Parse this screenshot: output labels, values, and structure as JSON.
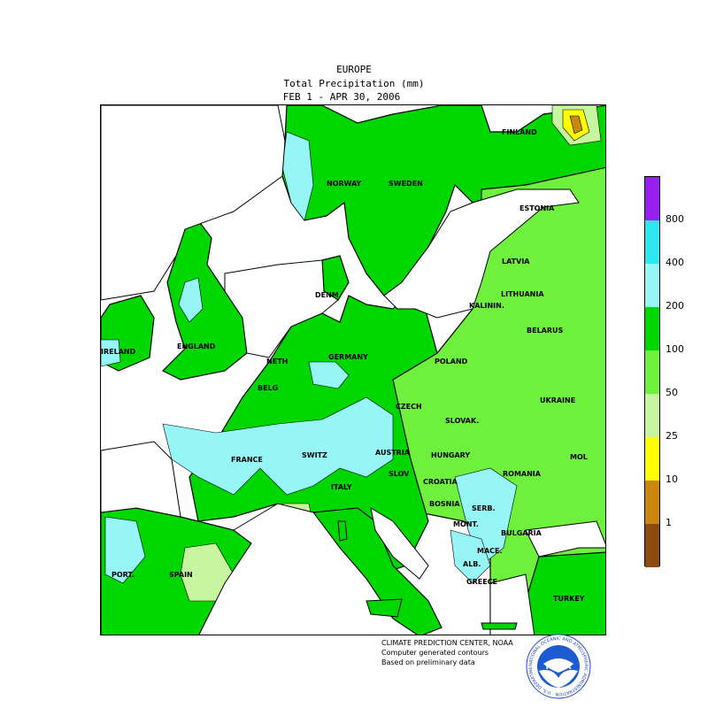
{
  "header": {
    "region": "EUROPE",
    "variable": "Total Precipitation (mm)",
    "period": "FEB  1 - APR 30, 2006"
  },
  "countries": [
    {
      "id": "finland",
      "label": "FINLAND"
    },
    {
      "id": "norway",
      "label": "NORWAY"
    },
    {
      "id": "sweden",
      "label": "SWEDEN"
    },
    {
      "id": "estonia",
      "label": "ESTONIA"
    },
    {
      "id": "latvia",
      "label": "LATVIA"
    },
    {
      "id": "lithuania",
      "label": "LITHUANIA"
    },
    {
      "id": "kalinin",
      "label": "KALININ."
    },
    {
      "id": "belarus",
      "label": "BELARUS"
    },
    {
      "id": "denmark",
      "label": "DENM"
    },
    {
      "id": "ireland",
      "label": "IRELAND"
    },
    {
      "id": "england",
      "label": "ENGLAND"
    },
    {
      "id": "neth",
      "label": "NETH"
    },
    {
      "id": "belg",
      "label": "BELG"
    },
    {
      "id": "germany",
      "label": "GERMANY"
    },
    {
      "id": "poland",
      "label": "POLAND"
    },
    {
      "id": "ukraine",
      "label": "UKRAINE"
    },
    {
      "id": "czech",
      "label": "CZECH"
    },
    {
      "id": "slovak",
      "label": "SLOVAK."
    },
    {
      "id": "france",
      "label": "FRANCE"
    },
    {
      "id": "switz",
      "label": "SWITZ"
    },
    {
      "id": "austria",
      "label": "AUSTRIA"
    },
    {
      "id": "hungary",
      "label": "HUNGARY"
    },
    {
      "id": "romania",
      "label": "ROMANIA"
    },
    {
      "id": "mol",
      "label": "MOL"
    },
    {
      "id": "slov",
      "label": "SLOV"
    },
    {
      "id": "croatia",
      "label": "CROATIA"
    },
    {
      "id": "italy",
      "label": "ITALY"
    },
    {
      "id": "bosnia",
      "label": "BOSNIA"
    },
    {
      "id": "serb",
      "label": "SERB."
    },
    {
      "id": "bulgaria",
      "label": "BULGARIA"
    },
    {
      "id": "mont",
      "label": "MONT."
    },
    {
      "id": "mace",
      "label": "MACE."
    },
    {
      "id": "alb",
      "label": "ALB."
    },
    {
      "id": "greece",
      "label": "GREECE"
    },
    {
      "id": "turkey",
      "label": "TURKEY"
    },
    {
      "id": "port",
      "label": "PORT."
    },
    {
      "id": "spain",
      "label": "SPAIN"
    }
  ],
  "legend": {
    "colors": [
      "#9b1ef0",
      "#2ee6f0",
      "#96f5f5",
      "#00d600",
      "#6ef03c",
      "#c8f5a0",
      "#ffff00",
      "#c8870f",
      "#8c4b0f"
    ],
    "labels": [
      "800",
      "400",
      "200",
      "100",
      "50",
      "25",
      "10",
      "1"
    ]
  },
  "credits": {
    "line1": "CLIMATE PREDICTION CENTER, NOAA",
    "line2": "Computer generated contours",
    "line3": "Based on preliminary data"
  },
  "logo": {
    "text": "NOAA",
    "ring_text": "NATIONAL OCEANIC AND ATMOSPHERIC ADMINISTRATION · U.S. DEPARTMENT OF COMMERCE"
  }
}
